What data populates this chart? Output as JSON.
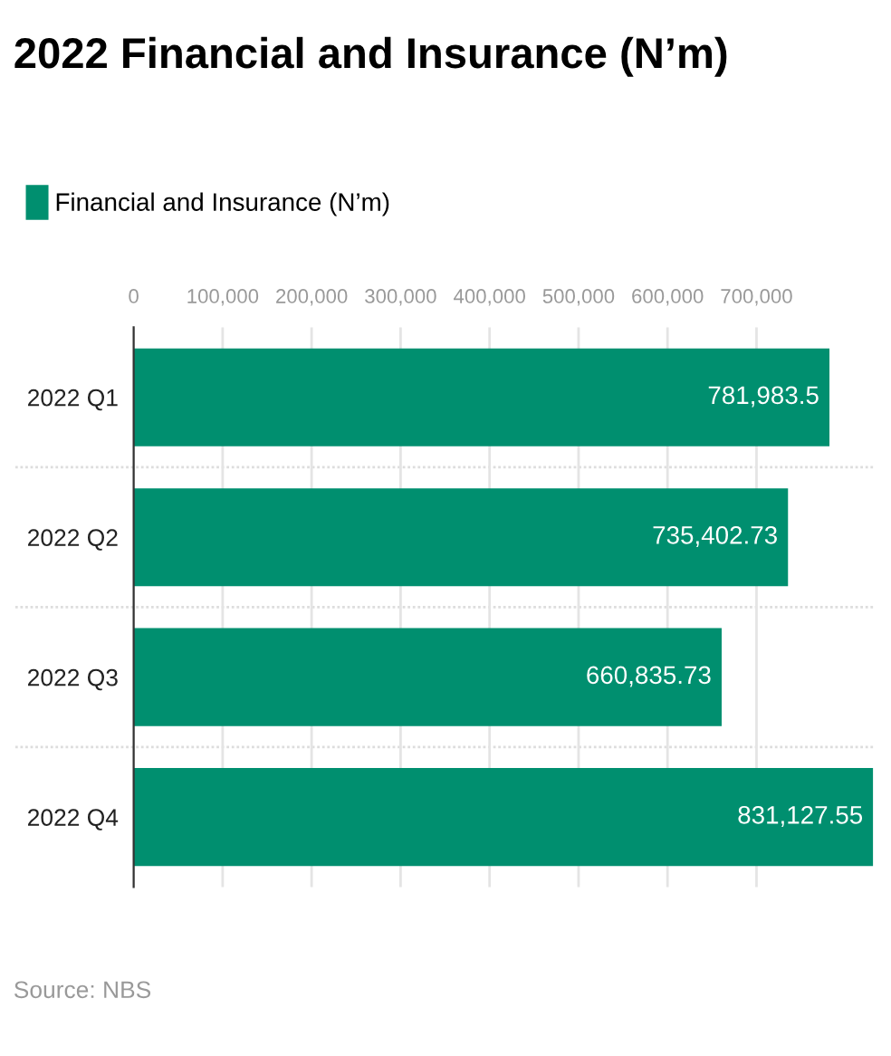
{
  "chart_data": {
    "type": "bar",
    "orientation": "horizontal",
    "title": "2022 Financial and Insurance (N’m)",
    "categories": [
      "2022 Q1",
      "2022 Q2",
      "2022 Q3",
      "2022 Q4"
    ],
    "series": [
      {
        "name": "Financial and Insurance (N’m)",
        "color": "#008f6f",
        "values": [
          781983.5,
          735402.73,
          660835.73,
          831127.55
        ]
      }
    ],
    "value_labels": [
      "781,983.5",
      "735,402.73",
      "660,835.73",
      "831,127.55"
    ],
    "xlim": [
      0,
      831127.55
    ],
    "xticks": [
      0,
      {
        "value": 100000,
        "label": "100,000"
      },
      {
        "value": 200000,
        "label": "200,000"
      },
      {
        "value": 300000,
        "label": "300,000"
      },
      {
        "value": 400000,
        "label": "400,000"
      },
      {
        "value": 500000,
        "label": "500,000"
      },
      {
        "value": 600000,
        "label": "600,000"
      },
      {
        "value": 700000,
        "label": "700,000"
      }
    ],
    "grid": "x",
    "legend": "top left",
    "annotations": [
      "Source: NBS"
    ]
  }
}
